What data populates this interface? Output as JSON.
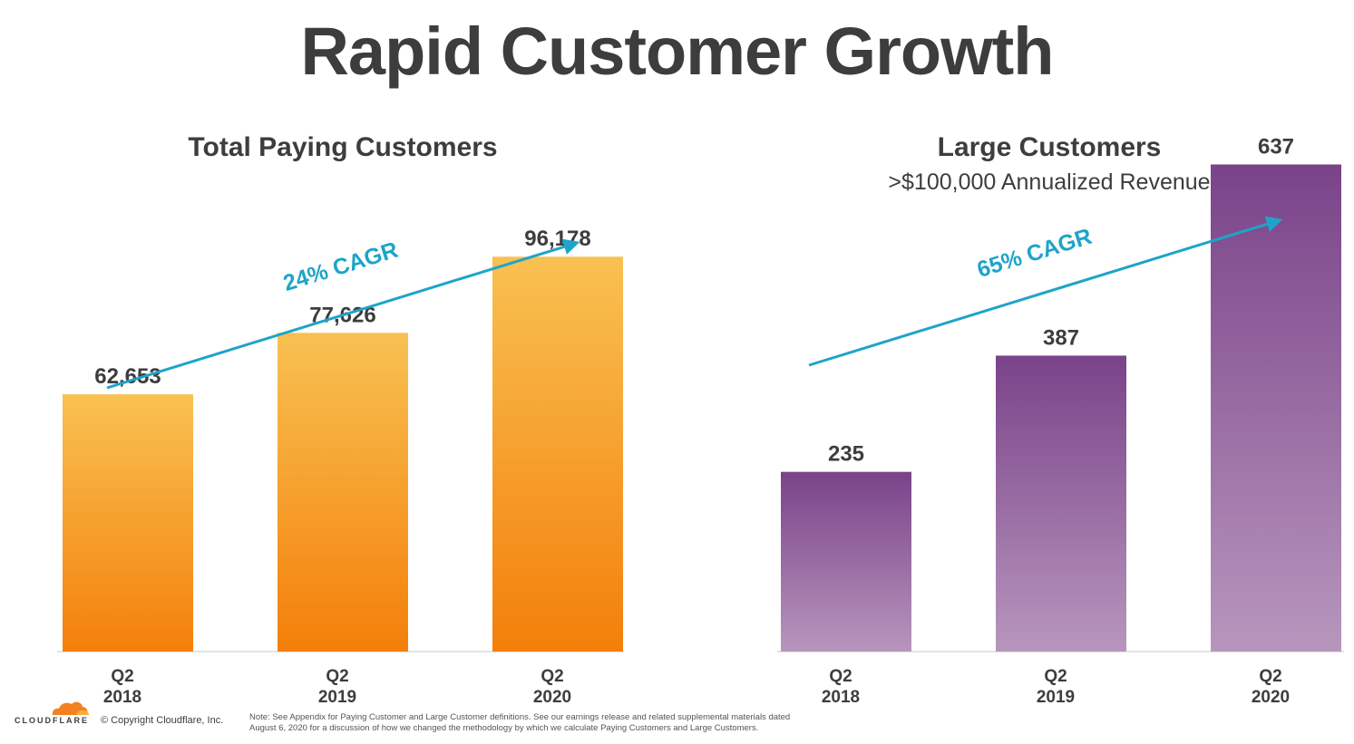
{
  "title": "Rapid Customer Growth",
  "colors": {
    "orange_top": "#f8c152",
    "orange_bottom": "#f47f0a",
    "purple_top": "#7a4389",
    "purple_bottom": "#b796bd",
    "cagr_arrow": "#1ea4c9",
    "text": "#3d3d3d"
  },
  "footer": {
    "brand": "CLOUDFLARE",
    "copyright": "© Copyright Cloudflare, Inc.",
    "note_line1": "Note: See Appendix for Paying Customer and Large Customer definitions. See our earnings release and related supplemental materials dated",
    "note_line2": "August 6, 2020 for a discussion of how we changed the methodology by which we calculate Paying Customers and Large Customers."
  },
  "chart_data": [
    {
      "type": "bar",
      "title": "Total Paying Customers",
      "subtitle": "",
      "categories": [
        [
          "Q2",
          "2018"
        ],
        [
          "Q2",
          "2019"
        ],
        [
          "Q2",
          "2020"
        ]
      ],
      "values": [
        62653,
        77626,
        96178
      ],
      "value_labels": [
        "62,653",
        "77,626",
        "96,178"
      ],
      "annotation": "24% CAGR",
      "ylim": [
        0,
        130000
      ],
      "color": "orange"
    },
    {
      "type": "bar",
      "title": "Large Customers",
      "subtitle": ">$100,000 Annualized Revenue",
      "categories": [
        [
          "Q2",
          "2018"
        ],
        [
          "Q2",
          "2019"
        ],
        [
          "Q2",
          "2020"
        ]
      ],
      "values": [
        235,
        387,
        637
      ],
      "value_labels": [
        "235",
        "387",
        "637"
      ],
      "annotation": "65% CAGR",
      "ylim": [
        0,
        698
      ],
      "color": "purple"
    }
  ]
}
